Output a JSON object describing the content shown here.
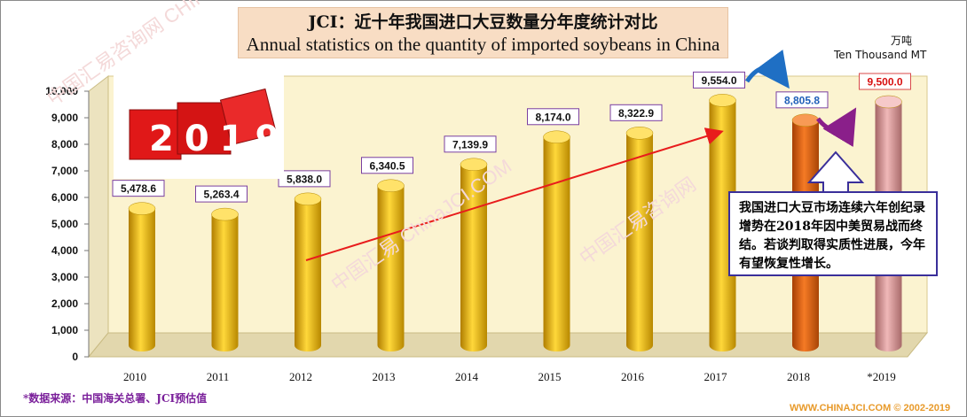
{
  "title_cn": "JCI：近十年我国进口大豆数量分年度统计对比",
  "title_en": "Annual statistics on the quantity of imported soybeans in China",
  "unit_cn": "万吨",
  "unit_en": "Ten Thousand  MT",
  "callout_text": "我国进口大豆市场连续六年创纪录增势在2018年因中美贸易战而终结。若谈判取得实质性进展，今年有望恢复性增长。",
  "source_note": "*数据来源：中国海关总署、JCI预估值",
  "copyright": "WWW.CHINAJCI.COM © 2002-2019",
  "badge_text": "2019",
  "colors": {
    "bar_gold": "#f2b705",
    "bar_orange": "#e0620f",
    "bar_pink": "#d9999a",
    "trend_arrow": "#e81c1c",
    "label_border": "#7a3fa0",
    "plot_bg": "#fbf3d0"
  },
  "chart_data": {
    "type": "bar",
    "categories": [
      "2010",
      "2011",
      "2012",
      "2013",
      "2014",
      "2015",
      "2016",
      "2017",
      "2018",
      "*2019"
    ],
    "values": [
      5478.6,
      5263.4,
      5838.0,
      6340.5,
      7139.9,
      8174.0,
      8322.9,
      9554.0,
      8805.8,
      9500.0
    ],
    "value_labels": [
      "5,478.6",
      "5,263.4",
      "5,838.0",
      "6,340.5",
      "7,139.9",
      "8,174.0",
      "8,322.9",
      "9,554.0",
      "8,805.8",
      "9,500.0"
    ],
    "y_ticks": [
      "0",
      "1,000",
      "2,000",
      "3,000",
      "4,000",
      "5,000",
      "6,000",
      "7,000",
      "8,000",
      "9,000",
      "10,000"
    ],
    "ylim": [
      0,
      10000
    ],
    "grid": false
  }
}
